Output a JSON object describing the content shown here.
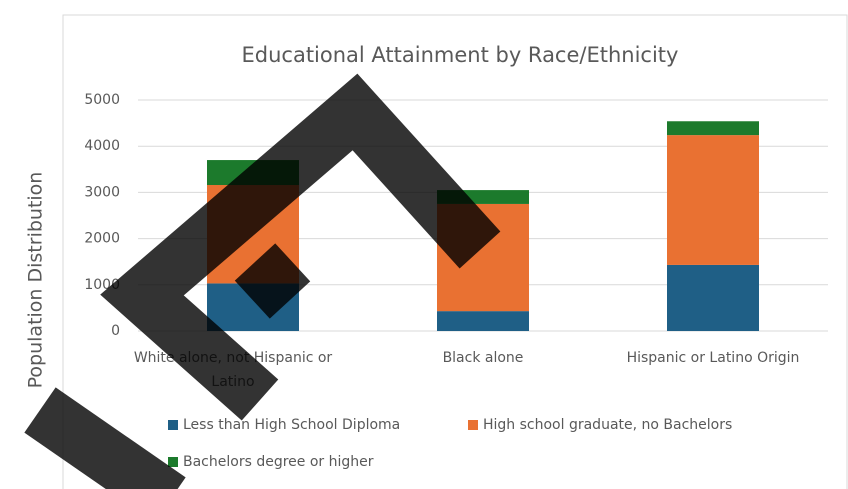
{
  "chart_data": {
    "type": "stacked_bar",
    "title": "Educational Attainment by Race/Ethnicity",
    "y_label": "Population Distribution",
    "categories": [
      "White alone, not Hispanic or Latino",
      "Black alone",
      "Hispanic or Latino Origin"
    ],
    "series": [
      {
        "name": "Less than High School Diploma",
        "color": "#1f5f86",
        "values": [
          1030,
          430,
          1430
        ]
      },
      {
        "name": "High school graduate, no Bachelors",
        "color": "#e97132",
        "values": [
          2130,
          2320,
          2810
        ]
      },
      {
        "name": "Bachelors degree or higher",
        "color": "#1c7a2c",
        "values": [
          540,
          300,
          300
        ]
      }
    ],
    "ylim": [
      0,
      5000
    ],
    "yticks": [
      0,
      1000,
      2000,
      3000,
      4000,
      5000
    ],
    "grid": true
  }
}
